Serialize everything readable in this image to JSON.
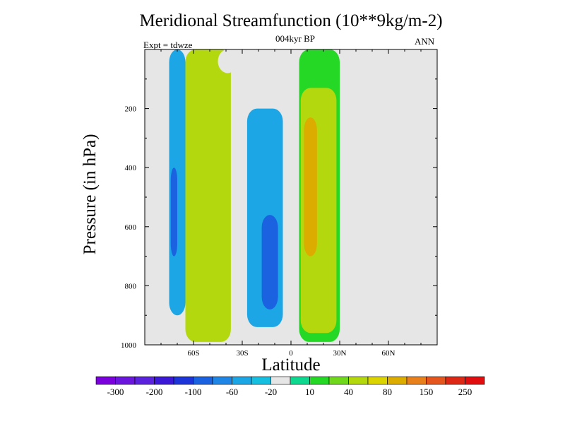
{
  "chart_data": {
    "type": "heatmap",
    "title": "Meridional Streamfunction (10**9kg/m-2)",
    "subtitle": "004kyr BP",
    "left_label": "Expt = tdwze",
    "right_label": "ANN",
    "xlabel": "Latitude",
    "ylabel": "Pressure (in hPa)",
    "xlim": [
      -90,
      90
    ],
    "ylim": [
      1000,
      0
    ],
    "x_ticks": [
      {
        "value": -60,
        "label": "60S"
      },
      {
        "value": -30,
        "label": "30S"
      },
      {
        "value": 0,
        "label": "0"
      },
      {
        "value": 30,
        "label": "30N"
      },
      {
        "value": 60,
        "label": "60N"
      }
    ],
    "y_ticks": [
      {
        "value": 200,
        "label": "200"
      },
      {
        "value": 400,
        "label": "400"
      },
      {
        "value": 600,
        "label": "600"
      },
      {
        "value": 800,
        "label": "800"
      },
      {
        "value": 1000,
        "label": "1000"
      }
    ],
    "colorbar": {
      "colors": [
        "#7a00dc",
        "#6a16dd",
        "#5a22dd",
        "#3a18d6",
        "#1d34d8",
        "#1a62e0",
        "#1f86e6",
        "#1ca6e6",
        "#16bfe0",
        "#e6e6e6",
        "#0ed890",
        "#26d826",
        "#70d81c",
        "#b4d80e",
        "#dcd400",
        "#dcac00",
        "#e8801c",
        "#e4561e",
        "#dc2814",
        "#e00e0e"
      ],
      "labels": [
        "-300",
        "-200",
        "-100",
        "-60",
        "-20",
        "10",
        "40",
        "80",
        "150",
        "250"
      ]
    },
    "contour_regions": [
      {
        "value": -20,
        "lat_range": [
          -77,
          -60
        ],
        "p_range": [
          0,
          970
        ]
      },
      {
        "value": -60,
        "lat_range": [
          -75,
          -65
        ],
        "p_range": [
          0,
          900
        ]
      },
      {
        "value": -100,
        "lat_range": [
          -74,
          -70
        ],
        "p_range": [
          400,
          700
        ]
      },
      {
        "value": 40,
        "lat_range": [
          -65,
          -37
        ],
        "p_range": [
          0,
          990
        ]
      },
      {
        "value": -20,
        "lat_range": [
          -30,
          3
        ],
        "p_range": [
          140,
          980
        ]
      },
      {
        "value": -60,
        "lat_range": [
          -27,
          -5
        ],
        "p_range": [
          200,
          940
        ]
      },
      {
        "value": -100,
        "lat_range": [
          -18,
          -8
        ],
        "p_range": [
          560,
          880
        ]
      },
      {
        "value": 10,
        "lat_range": [
          5,
          30
        ],
        "p_range": [
          0,
          990
        ]
      },
      {
        "value": 40,
        "lat_range": [
          6,
          28
        ],
        "p_range": [
          130,
          960
        ]
      },
      {
        "value": 80,
        "lat_range": [
          8,
          16
        ],
        "p_range": [
          230,
          700
        ]
      },
      {
        "value": -20,
        "lat_range": [
          30,
          50
        ],
        "p_range": [
          180,
          810
        ]
      },
      {
        "value": -20,
        "lat_range": [
          -45,
          -33
        ],
        "p_range": [
          0,
          80
        ]
      },
      {
        "value": -20,
        "lat_range": [
          72,
          76
        ],
        "p_range": [
          0,
          130
        ]
      }
    ]
  }
}
